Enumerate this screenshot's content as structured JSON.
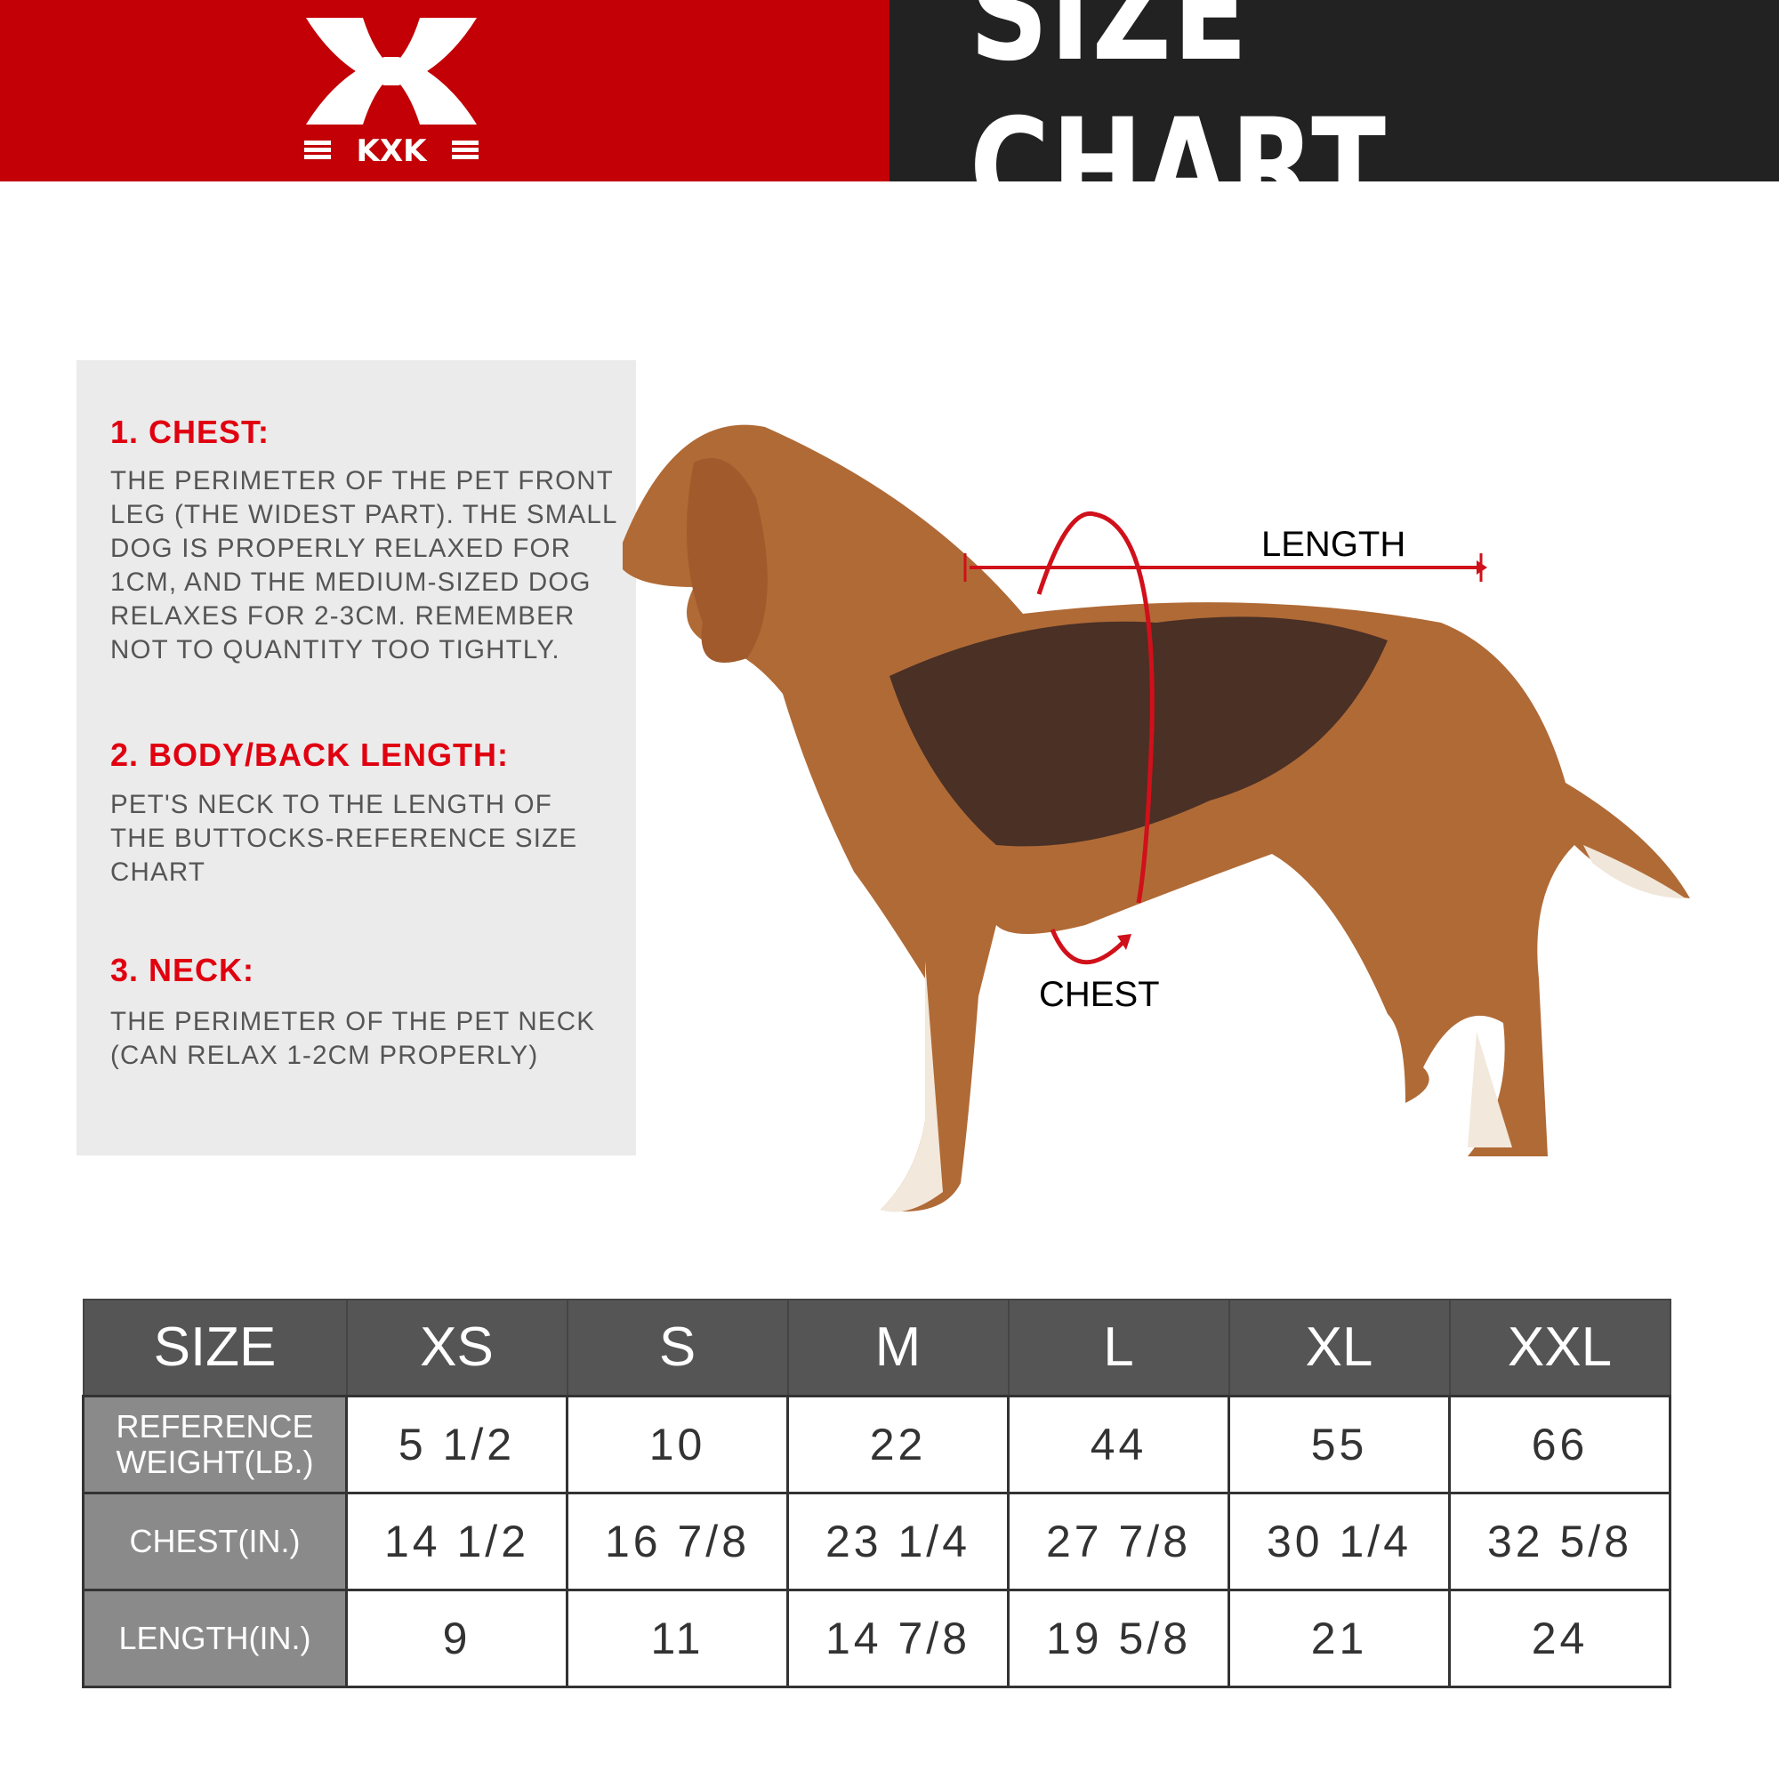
{
  "header": {
    "brand": "KXK",
    "title": "SIZE CHART",
    "brand_color": "#c20006",
    "dark_color": "#222222"
  },
  "guide": {
    "sections": [
      {
        "heading": "1. CHEST:",
        "body": "THE PERIMETER OF THE PET FRONT\nLEG (THE WIDEST PART). THE SMALL\nDOG IS PROPERLY RELAXED FOR\n1CM, AND THE MEDIUM-SIZED DOG\nRELAXES FOR 2-3CM. REMEMBER\nNOT TO QUANTITY TOO TIGHTLY."
      },
      {
        "heading": "2. BODY/BACK LENGTH:",
        "body": "PET'S NECK TO THE LENGTH OF\nTHE BUTTOCKS-REFERENCE SIZE\nCHART"
      },
      {
        "heading": "3. NECK:",
        "body": "THE PERIMETER OF THE PET NECK\n (CAN RELAX 1-2CM PROPERLY)"
      }
    ]
  },
  "diagram": {
    "length_label": "LENGTH",
    "chest_label": "CHEST",
    "accent": "#d0101a"
  },
  "table": {
    "headers": [
      "SIZE",
      "XS",
      "S",
      "M",
      "L",
      "XL",
      "XXL"
    ],
    "rows": [
      {
        "label": "REFERENCE WEIGHT(LB.)",
        "values": [
          "5 1/2",
          "10",
          "22",
          "44",
          "55",
          "66"
        ]
      },
      {
        "label": "CHEST(IN.)",
        "values": [
          "14 1/2",
          "16 7/8",
          "23 1/4",
          "27 7/8",
          "30 1/4",
          "32 5/8"
        ]
      },
      {
        "label": "LENGTH(IN.)",
        "values": [
          "9",
          "11",
          "14 7/8",
          "19 5/8",
          "21",
          "24"
        ]
      }
    ]
  }
}
